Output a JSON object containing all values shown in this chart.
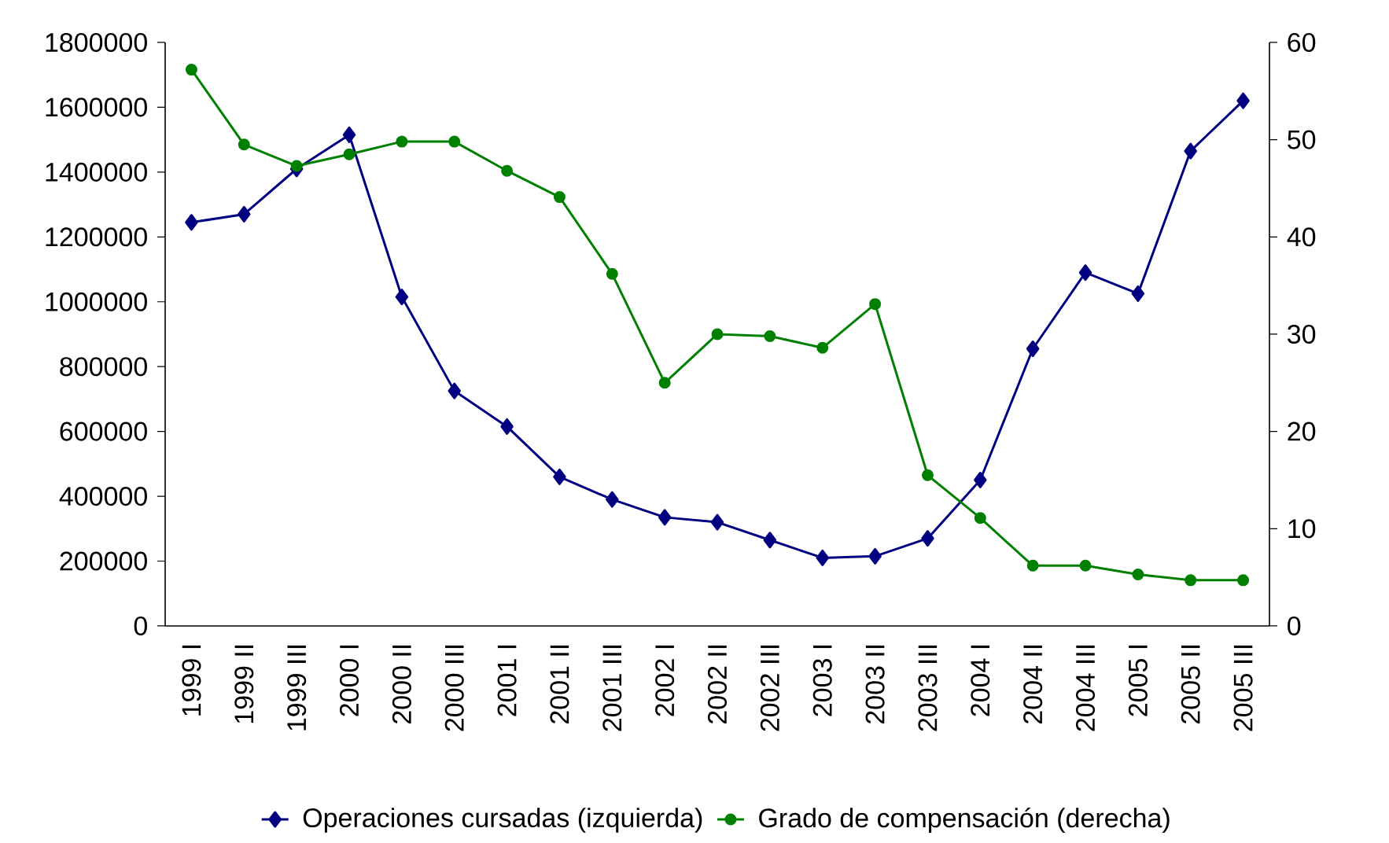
{
  "chart_data": {
    "type": "line",
    "categories": [
      "1999 I",
      "1999 II",
      "1999 III",
      "2000 I",
      "2000 II",
      "2000 III",
      "2001 I",
      "2001 II",
      "2001 III",
      "2002 I",
      "2002 II",
      "2002 III",
      "2003 I",
      "2003 II",
      "2003 III",
      "2004 I",
      "2004 II",
      "2004 III",
      "2005 I",
      "2005 II",
      "2005 III"
    ],
    "series": [
      {
        "name": "Operaciones cursadas (izquierda)",
        "color": "#000080",
        "marker": "diamond",
        "values": [
          1245000,
          1270000,
          1410000,
          1515000,
          1015000,
          725000,
          615000,
          460000,
          390000,
          335000,
          320000,
          265000,
          210000,
          215000,
          270000,
          450000,
          855000,
          1090000,
          1025000,
          1465000,
          1620000
        ]
      },
      {
        "name": "Grado de compensación (derecha)",
        "color": "#008000",
        "marker": "circle",
        "axis": "y2",
        "values": [
          57.2,
          49.5,
          47.3,
          48.5,
          49.8,
          49.8,
          46.8,
          44.1,
          36.2,
          25,
          30,
          29.8,
          28.6,
          33.1,
          15.5,
          11.1,
          6.2,
          6.2,
          5.3,
          4.7,
          4.7
        ]
      }
    ],
    "ylim": [
      0,
      1800000
    ],
    "yticks": [
      0,
      200000,
      400000,
      600000,
      800000,
      1000000,
      1200000,
      1400000,
      1600000,
      1800000
    ],
    "y2lim": [
      0,
      60
    ],
    "y2ticks": [
      0,
      10,
      20,
      30,
      40,
      50,
      60
    ],
    "legend": "bottom",
    "grid": false
  }
}
